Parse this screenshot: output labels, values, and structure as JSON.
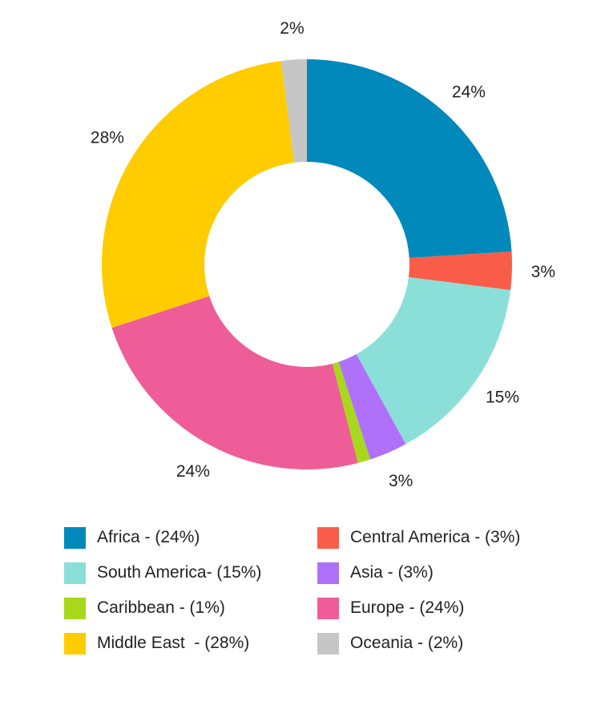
{
  "chart_data": {
    "type": "pie",
    "donut": true,
    "title": "",
    "slices": [
      {
        "label": "Africa - (24%)",
        "value": 24,
        "display": "24%",
        "color": "#0089BA"
      },
      {
        "label": "Central America - (3%)",
        "value": 3,
        "display": "3%",
        "color": "#F95D4A"
      },
      {
        "label": "South America- (15%)",
        "value": 15,
        "display": "15%",
        "color": "#8ADFD8"
      },
      {
        "label": "Asia - (3%)",
        "value": 3,
        "display": "3%",
        "color": "#AF71F9"
      },
      {
        "label": "Caribbean - (1%)",
        "value": 1,
        "display": "",
        "color": "#A8D81C"
      },
      {
        "label": "Europe - (24%)",
        "value": 24,
        "display": "24%",
        "color": "#EE5D97"
      },
      {
        "label": "Middle East  - (28%)",
        "value": 28,
        "display": "28%",
        "color": "#FFCC00"
      },
      {
        "label": "Oceania - (2%)",
        "value": 2,
        "display": "2%",
        "color": "#C6C6C6"
      }
    ],
    "legend": {
      "placement": "bottom",
      "order": [
        "Africa - (24%)",
        "Central America - (3%)",
        "South America- (15%)",
        "Asia - (3%)",
        "Caribbean - (1%)",
        "Europe - (24%)",
        "Middle East  - (28%)",
        "Oceania - (2%)"
      ]
    }
  }
}
